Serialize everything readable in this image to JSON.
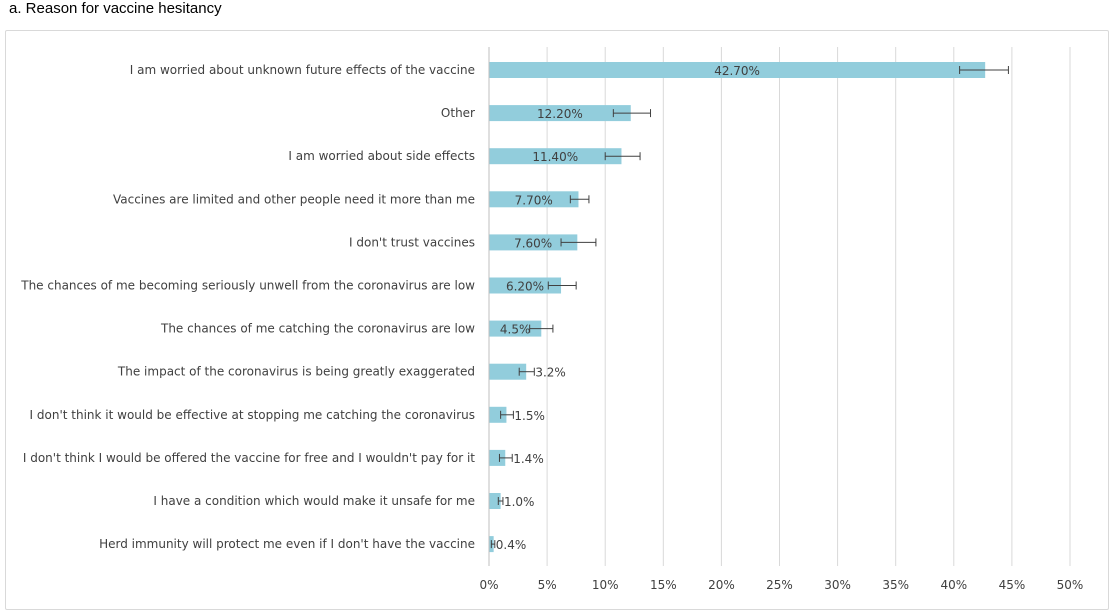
{
  "panel_title": "a.   Reason for vaccine hesitancy",
  "chart_data": {
    "type": "bar",
    "orientation": "horizontal",
    "title": "",
    "xlabel": "",
    "ylabel": "",
    "xlim": [
      0,
      50
    ],
    "x_ticks": [
      "0%",
      "5%",
      "10%",
      "15%",
      "20%",
      "25%",
      "30%",
      "35%",
      "40%",
      "45%",
      "50%"
    ],
    "grid": "vertical",
    "bar_color": "#92cddc",
    "categories": [
      "I am worried about unknown future effects of the vaccine",
      "Other",
      "I am worried about side effects",
      "Vaccines are limited and other people need it more than me",
      "I don't trust vaccines",
      "The chances of me becoming seriously unwell from the coronavirus are low",
      "The chances of me catching the coronavirus are low",
      "The impact of the coronavirus is being greatly exaggerated",
      "I don't think it would be effective at stopping me catching the coronavirus",
      "I don't think I would be offered the vaccine for free and I wouldn't pay for it",
      "I have a condition which would make it unsafe for me",
      "Herd immunity will protect me even if I don't have the vaccine"
    ],
    "values": [
      42.7,
      12.2,
      11.4,
      7.7,
      7.6,
      6.2,
      4.5,
      3.2,
      1.5,
      1.4,
      1.0,
      0.4
    ],
    "data_labels": [
      "42.70%",
      "12.20%",
      "11.40%",
      "7.70%",
      "7.60%",
      "6.20%",
      "4.5%",
      "3.2%",
      "1.5%",
      "1.4%",
      "1.0%",
      "0.4%"
    ],
    "error_low": [
      40.5,
      10.7,
      10.0,
      7.0,
      6.2,
      5.1,
      3.5,
      2.6,
      1.0,
      0.9,
      0.8,
      0.2
    ],
    "error_high": [
      44.7,
      13.9,
      13.0,
      8.6,
      9.2,
      7.5,
      5.5,
      3.9,
      2.1,
      2.0,
      1.2,
      0.5
    ]
  }
}
